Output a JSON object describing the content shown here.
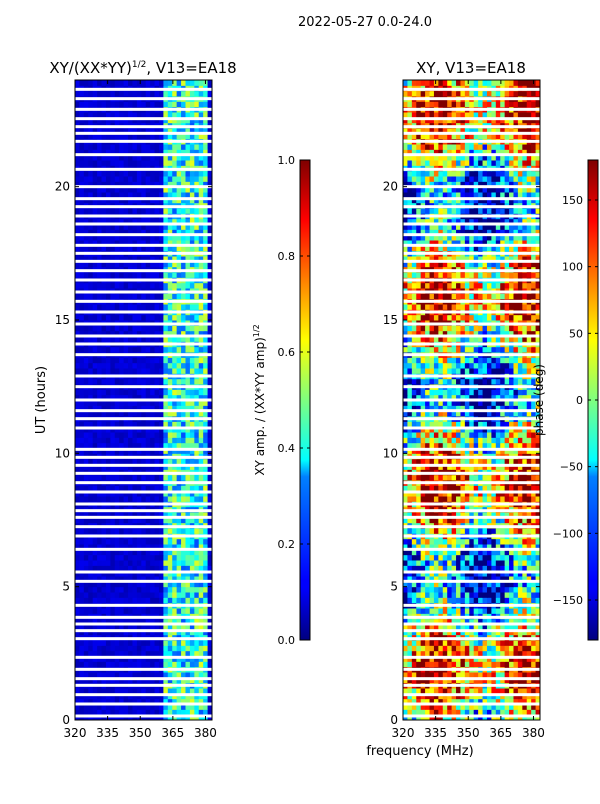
{
  "figure": {
    "suptitle": "2022-05-27 0.0-24.0",
    "shared_xlabel": "frequency (MHz)",
    "shared_ylabel": "UT (hours)"
  },
  "chart_data": [
    {
      "type": "heatmap",
      "title_prefix": "XY/(XX*YY)",
      "title_superscript": "1/2",
      "title_suffix": ", V13=EA18",
      "xlabel": "frequency (MHz)",
      "ylabel": "UT (hours)",
      "xlim": [
        320,
        383
      ],
      "ylim": [
        0,
        24
      ],
      "xticks": [
        320,
        335,
        350,
        365,
        380
      ],
      "yticks": [
        0,
        5,
        10,
        15,
        20
      ],
      "colormap": "jet",
      "colorbar": {
        "label_prefix": "XY amp. / (XX*YY amp)",
        "label_superscript": "1/2",
        "range": [
          0.0,
          1.0
        ],
        "ticks": [
          0.0,
          0.2,
          0.4,
          0.6,
          0.8,
          1.0
        ],
        "tick_labels": [
          "0.0",
          "0.2",
          "0.4",
          "0.6",
          "0.8",
          "1.0"
        ]
      },
      "value_summary": {
        "background_level": 0.05,
        "active_band_mhz": [
          360,
          380
        ],
        "active_band_level_range": [
          0.2,
          0.6
        ]
      }
    },
    {
      "type": "heatmap",
      "title": "XY, V13=EA18",
      "xlabel": "frequency (MHz)",
      "xlim": [
        320,
        383
      ],
      "ylim": [
        0,
        24
      ],
      "xticks": [
        320,
        335,
        350,
        365,
        380
      ],
      "yticks": [
        0,
        5,
        10,
        15,
        20
      ],
      "colormap": "jet",
      "colorbar": {
        "label": "phase (deg)",
        "range": [
          -180,
          180
        ],
        "ticks": [
          -150,
          -100,
          -50,
          0,
          50,
          100,
          150
        ],
        "tick_labels": [
          "−150",
          "−100",
          "−50",
          "0",
          "50",
          "100",
          "150"
        ]
      },
      "value_summary": {
        "phase_range_deg": [
          -180,
          180
        ]
      }
    }
  ],
  "flagged_hours": [
    0.15,
    0.6,
    0.95,
    1.3,
    1.55,
    1.9,
    2.35,
    3.05,
    3.35,
    3.6,
    3.85,
    4.3,
    5.2,
    5.55,
    6.4,
    6.9,
    7.25,
    7.6,
    7.85,
    8.1,
    8.55,
    8.9,
    9.25,
    9.55,
    9.85,
    10.15,
    10.95,
    11.3,
    11.6,
    12.0,
    12.5,
    12.9,
    13.7,
    14.1,
    14.4,
    14.85,
    15.3,
    15.7,
    16.05,
    16.5,
    16.85,
    17.2,
    17.5,
    17.8,
    18.2,
    18.6,
    18.9,
    19.25,
    19.55,
    20.0,
    20.65,
    21.2,
    21.7,
    22.0,
    22.25,
    22.55,
    22.9,
    23.3,
    23.65
  ],
  "colors": {
    "axis": "#000000",
    "background": "#ffffff",
    "flag_gap": "#ffffff"
  }
}
